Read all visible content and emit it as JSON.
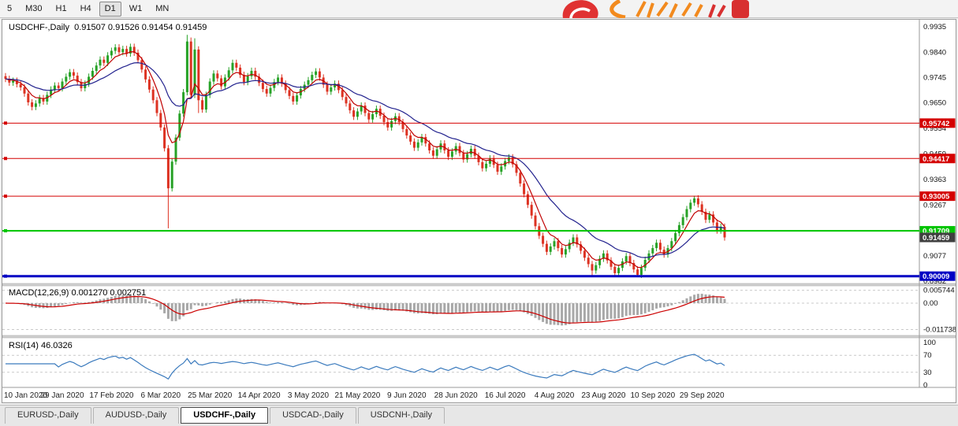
{
  "toolbar": {
    "timeframes": [
      "5",
      "M30",
      "H1",
      "H4",
      "D1",
      "W1",
      "MN"
    ],
    "active_timeframe": "D1"
  },
  "panes": {
    "main_title": "USDCHF-,Daily  0.91507 0.91526 0.91454 0.91459",
    "macd_title": "MACD(12,26,9) 0.001270 0.002751",
    "rsi_title": "RSI(14) 46.0326"
  },
  "tabs": {
    "items": [
      "EURUSD-,Daily",
      "AUDUSD-,Daily",
      "USDCHF-,Daily",
      "USDCAD-,Daily",
      "USDCNH-,Daily"
    ],
    "active": "USDCHF-,Daily"
  },
  "chart_data": {
    "type": "candlestick",
    "symbol": "USDCHF-",
    "period": "Daily",
    "ohlc": {
      "open": 0.91507,
      "high": 0.91526,
      "low": 0.91454,
      "close": 0.91459
    },
    "y_range": [
      0.8973,
      0.9962
    ],
    "up_color": "#27a227",
    "down_color": "#dd3222",
    "first_open": 0.975,
    "default_wick": 0.0012,
    "closes": [
      0.974,
      0.9726,
      0.9733,
      0.972,
      0.9708,
      0.9685,
      0.9652,
      0.9635,
      0.9648,
      0.9668,
      0.9655,
      0.968,
      0.97,
      0.9715,
      0.9705,
      0.973,
      0.9748,
      0.9765,
      0.9752,
      0.9728,
      0.9705,
      0.9722,
      0.9748,
      0.977,
      0.979,
      0.9812,
      0.98,
      0.9828,
      0.9845,
      0.9858,
      0.984,
      0.9852,
      0.9835,
      0.986,
      0.9838,
      0.981,
      0.9775,
      0.9738,
      0.97,
      0.966,
      0.9612,
      0.9558,
      0.948,
      0.933,
      0.943,
      0.952,
      0.961,
      0.969,
      0.988,
      0.968,
      0.985,
      0.966,
      0.9625,
      0.968,
      0.973,
      0.976,
      0.9742,
      0.9712,
      0.9745,
      0.9772,
      0.98,
      0.9782,
      0.9755,
      0.9728,
      0.975,
      0.977,
      0.9748,
      0.9725,
      0.9702,
      0.9685,
      0.9706,
      0.9728,
      0.9745,
      0.9722,
      0.9698,
      0.9676,
      0.9655,
      0.9678,
      0.9702,
      0.9718,
      0.9735,
      0.9755,
      0.9768,
      0.9745,
      0.9718,
      0.9692,
      0.9708,
      0.9722,
      0.9698,
      0.9672,
      0.9648,
      0.9622,
      0.9598,
      0.9618,
      0.964,
      0.9612,
      0.9588,
      0.9608,
      0.9628,
      0.9602,
      0.9578,
      0.9558,
      0.9582,
      0.96,
      0.9578,
      0.9552,
      0.9528,
      0.9505,
      0.9482,
      0.9502,
      0.9522,
      0.9498,
      0.9472,
      0.9452,
      0.9476,
      0.9498,
      0.9472,
      0.9448,
      0.9468,
      0.9488,
      0.9462,
      0.9438,
      0.9458,
      0.9478,
      0.9452,
      0.9428,
      0.9405,
      0.9422,
      0.9442,
      0.9418,
      0.9392,
      0.9412,
      0.9432,
      0.9446,
      0.942,
      0.9388,
      0.9348,
      0.9308,
      0.9268,
      0.9228,
      0.9188,
      0.9152,
      0.9122,
      0.9092,
      0.9112,
      0.9132,
      0.9106,
      0.9082,
      0.9102,
      0.9126,
      0.9146,
      0.912,
      0.9096,
      0.907,
      0.9046,
      0.9022,
      0.9042,
      0.9066,
      0.9086,
      0.906,
      0.9036,
      0.9012,
      0.9032,
      0.9056,
      0.9076,
      0.905,
      0.9026,
      0.9006,
      0.9032,
      0.9062,
      0.9086,
      0.9106,
      0.9126,
      0.91,
      0.9082,
      0.9106,
      0.9132,
      0.9162,
      0.9192,
      0.9222,
      0.9252,
      0.9276,
      0.9292,
      0.927,
      0.9242,
      0.9212,
      0.9232,
      0.9202,
      0.9172,
      0.9186,
      0.9146
    ],
    "wick_overrides": {
      "7": {
        "l": 0.9622
      },
      "33": {
        "h": 0.9872
      },
      "43": {
        "l": 0.918
      },
      "48": {
        "h": 0.9905
      },
      "49": {
        "h": 0.9895
      },
      "50": {
        "h": 0.9892
      },
      "51": {
        "l": 0.9612
      },
      "155": {
        "l": 0.8999
      },
      "161": {
        "l": 0.8998
      },
      "167": {
        "l": 0.8999
      },
      "182": {
        "h": 0.9302
      }
    },
    "moving_averages": [
      {
        "type": "ema",
        "period": 6,
        "color": "#c00000"
      },
      {
        "type": "ema",
        "period": 20,
        "color": "#22228e"
      }
    ],
    "h_lines": [
      {
        "price": 0.95742,
        "label": "0.95742",
        "color": "#d40000",
        "width": 1
      },
      {
        "price": 0.94417,
        "label": "0.94417",
        "color": "#d40000",
        "width": 1
      },
      {
        "price": 0.93005,
        "label": "0.93005",
        "color": "#d40000",
        "width": 1
      },
      {
        "price": 0.91709,
        "label": "0.91709",
        "color": "#00c400",
        "width": 2
      },
      {
        "price": 0.90009,
        "label": "0.90009",
        "color": "#0000c4",
        "width": 3
      }
    ],
    "current_price": {
      "price": 0.91459,
      "label": "0.91459",
      "tag_color": "#3f3f3f"
    },
    "y_axis_labels": [
      {
        "text": "0.9935",
        "price": 0.9935
      },
      {
        "text": "0.9840",
        "price": 0.984
      },
      {
        "text": "0.9745",
        "price": 0.9745
      },
      {
        "text": "0.9650",
        "price": 0.965
      },
      {
        "text": "0.9554",
        "price": 0.9554
      },
      {
        "text": "0.9459",
        "price": 0.9459
      },
      {
        "text": "0.9363",
        "price": 0.9363
      },
      {
        "text": "0.9267",
        "price": 0.9267
      },
      {
        "text": "0.9171",
        "price": 0.9171
      },
      {
        "text": "0.9077",
        "price": 0.9077
      },
      {
        "text": "0.8982",
        "price": 0.8982
      }
    ],
    "x_axis_labels": [
      {
        "index": 2,
        "text": "10 Jan 2020"
      },
      {
        "index": 15,
        "text": "29 Jan 2020"
      },
      {
        "index": 28,
        "text": "17 Feb 2020"
      },
      {
        "index": 41,
        "text": "6 Mar 2020"
      },
      {
        "index": 54,
        "text": "25 Mar 2020"
      },
      {
        "index": 67,
        "text": "14 Apr 2020"
      },
      {
        "index": 80,
        "text": "3 May 2020"
      },
      {
        "index": 93,
        "text": "21 May 2020"
      },
      {
        "index": 106,
        "text": "9 Jun 2020"
      },
      {
        "index": 119,
        "text": "28 Jun 2020"
      },
      {
        "index": 132,
        "text": "16 Jul 2020"
      },
      {
        "index": 145,
        "text": "4 Aug 2020"
      },
      {
        "index": 158,
        "text": "23 Aug 2020"
      },
      {
        "index": 171,
        "text": "10 Sep 2020"
      },
      {
        "index": 184,
        "text": "29 Sep 2020"
      }
    ],
    "macd": {
      "fast": 12,
      "slow": 26,
      "signal": 9,
      "main_value": "0.001270",
      "signal_value": "0.002751",
      "histogram_color": "#a8a8a8",
      "signal_color": "#cc0000",
      "axis_labels": [
        {
          "text": "0.005744",
          "value": 0.005744
        },
        {
          "text": "0.00",
          "value": 0
        },
        {
          "text": "-0.011738",
          "value": -0.011738
        }
      ]
    },
    "rsi": {
      "period": 14,
      "value": "46.0326",
      "color": "#3a7abd",
      "level_lines": [
        70,
        30
      ],
      "axis_labels": [
        {
          "text": "100",
          "value": 100
        },
        {
          "text": "70",
          "value": 70
        },
        {
          "text": "30",
          "value": 30
        },
        {
          "text": "0",
          "value": 0
        }
      ]
    }
  }
}
